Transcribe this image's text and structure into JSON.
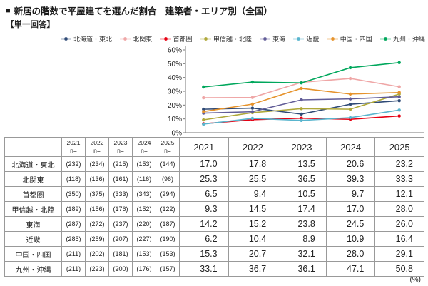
{
  "title": "新居の階数で平屋建てを選んだ割合　建築者・エリア別（全国）",
  "title_bullet": "■",
  "subtitle": "【単一回答】",
  "unit_label": "(%)",
  "chart_data": {
    "type": "line",
    "title": "新居の階数で平屋建てを選んだ割合　建築者・エリア別（全国）",
    "categories": [
      "2021",
      "2022",
      "2023",
      "2024",
      "2025"
    ],
    "xlabel": "",
    "ylabel": "",
    "ylim": [
      0,
      60
    ],
    "ytick_step": 10,
    "ytick_suffix": "%",
    "grid": false,
    "legend_position": "top",
    "series": [
      {
        "name": "北海道・東北",
        "color": "#2f4a76",
        "values": [
          "17.0",
          "17.8",
          "13.5",
          "20.6",
          "23.2"
        ],
        "n": [
          "(232)",
          "(234)",
          "(215)",
          "(153)",
          "(144)"
        ]
      },
      {
        "name": "北関東",
        "color": "#efa6a6",
        "values": [
          "25.3",
          "25.5",
          "36.5",
          "39.3",
          "33.3"
        ],
        "n": [
          "(118)",
          "(136)",
          "(161)",
          "(116)",
          "(96)"
        ]
      },
      {
        "name": "首都圏",
        "color": "#e60012",
        "values": [
          "6.5",
          "9.4",
          "10.5",
          "9.7",
          "12.1"
        ],
        "n": [
          "(350)",
          "(375)",
          "(333)",
          "(343)",
          "(294)"
        ]
      },
      {
        "name": "甲信越・北陸",
        "color": "#afa83a",
        "values": [
          "9.3",
          "14.5",
          "17.4",
          "17.0",
          "28.0"
        ],
        "n": [
          "(189)",
          "(156)",
          "(176)",
          "(152)",
          "(122)"
        ]
      },
      {
        "name": "東海",
        "color": "#625d98",
        "values": [
          "14.2",
          "15.2",
          "23.8",
          "24.5",
          "26.0"
        ],
        "n": [
          "(287)",
          "(272)",
          "(237)",
          "(220)",
          "(187)"
        ]
      },
      {
        "name": "近畿",
        "color": "#59b5ce",
        "values": [
          "6.2",
          "10.4",
          "8.9",
          "10.9",
          "16.4"
        ],
        "n": [
          "(285)",
          "(259)",
          "(207)",
          "(227)",
          "(190)"
        ]
      },
      {
        "name": "中国・四国",
        "color": "#e6932c",
        "values": [
          "15.3",
          "20.7",
          "32.1",
          "28.0",
          "29.1"
        ],
        "n": [
          "(211)",
          "(202)",
          "(181)",
          "(153)",
          "(153)"
        ]
      },
      {
        "name": "九州・沖縄",
        "color": "#00a75c",
        "values": [
          "33.1",
          "36.7",
          "36.1",
          "47.1",
          "50.8"
        ],
        "n": [
          "(211)",
          "(223)",
          "(200)",
          "(176)",
          "(157)"
        ]
      }
    ]
  },
  "table": {
    "n_label": "n="
  }
}
